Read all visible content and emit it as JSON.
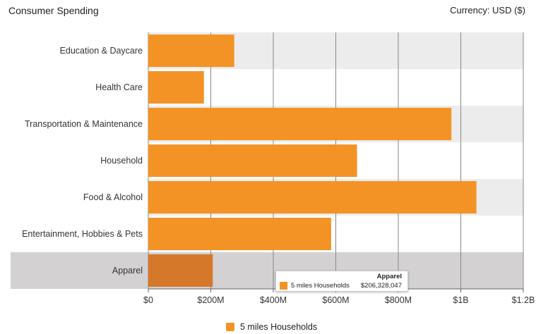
{
  "header": {
    "title": "Consumer Spending",
    "currency": "Currency: USD ($)"
  },
  "colors": {
    "bar": "#f39325",
    "bar_highlight": "#d6782a",
    "band_even": "#ececec",
    "band_odd": "#ffffff",
    "band_highlight": "#d3d1d2",
    "grid": "#888888"
  },
  "chart_data": {
    "type": "bar",
    "orientation": "horizontal",
    "title": "Consumer Spending",
    "categories": [
      "Education & Daycare",
      "Health Care",
      "Transportation & Maintenance",
      "Household",
      "Food & Alcohol",
      "Entertainment, Hobbies & Pets",
      "Apparel"
    ],
    "series": [
      {
        "name": "5 miles Households",
        "values": [
          275000000,
          178000000,
          970000000,
          668000000,
          1050000000,
          585000000,
          206328047
        ]
      }
    ],
    "xlim": [
      0,
      1200000000
    ],
    "xticks": [
      0,
      200000000,
      400000000,
      600000000,
      800000000,
      1000000000,
      1200000000
    ],
    "xtick_labels": [
      "$0",
      "$200M",
      "$400M",
      "$600M",
      "$800M",
      "$1B",
      "$1.2B"
    ],
    "grid": true,
    "legend_position": "bottom-center",
    "highlighted_category": "Apparel"
  },
  "tooltip": {
    "title": "Apparel",
    "series": "5 miles Households",
    "value": "$206,328,047"
  }
}
